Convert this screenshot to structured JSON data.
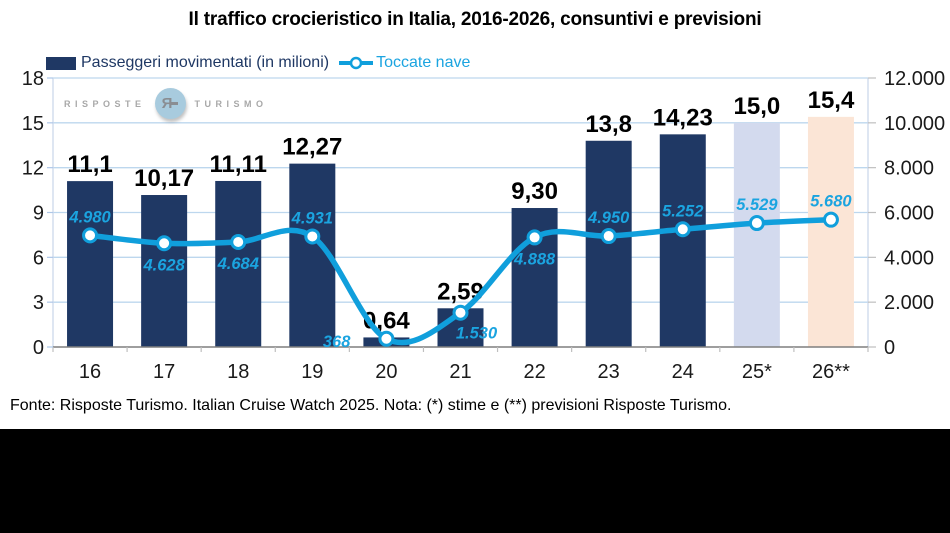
{
  "page": {
    "title": "Il traffico crocieristico in Italia, 2016-2026, consuntivi e previsioni",
    "footer": "Fonte: Risposte Turismo. Italian Cruise Watch 2025. Nota: (*) stime e (**) previsioni Risposte Turismo.",
    "watermark": {
      "left": "RISPOSTE",
      "right": "TURISMO",
      "monogram": "Я"
    }
  },
  "legend": {
    "items": [
      {
        "label": "Passeggeri movimentati (in milioni)",
        "type": "bar"
      },
      {
        "label": "Toccate nave",
        "type": "line"
      }
    ],
    "position": "top-left"
  },
  "colors": {
    "bar": "#1F3864",
    "bar_estimate": "#D3DAEE",
    "bar_forecast": "#FBE5D6",
    "line": "#109FDC",
    "line_label": "#1BA4E0",
    "grid": "#BDD7EE",
    "plot_border": "#C9D6EA",
    "axis_line": "#7F7F7F",
    "tick": "#BFBFBF",
    "left_tick": "#AEC7E8",
    "bar_label": "#000000",
    "axis_text": "#1a1a1a"
  },
  "chart_data": {
    "type": "combo-bar-line",
    "title": "Il traffico crocieristico in Italia, 2016-2026, consuntivi e previsioni",
    "categories": [
      "16",
      "17",
      "18",
      "19",
      "20",
      "21",
      "22",
      "23",
      "24",
      "25*",
      "26**"
    ],
    "grid": true,
    "legend_position": "top-left",
    "left_axis": {
      "min": 0,
      "max": 18,
      "ticks": [
        {
          "value": 0,
          "label": "0"
        },
        {
          "value": 3,
          "label": "3"
        },
        {
          "value": 6,
          "label": "6"
        },
        {
          "value": 9,
          "label": "9"
        },
        {
          "value": 12,
          "label": "12"
        },
        {
          "value": 15,
          "label": "15"
        },
        {
          "value": 18,
          "label": "18"
        }
      ]
    },
    "right_axis": {
      "min": 0,
      "max": 12000,
      "ticks": [
        {
          "value": 0,
          "label": "0"
        },
        {
          "value": 2000,
          "label": "2.000"
        },
        {
          "value": 4000,
          "label": "4.000"
        },
        {
          "value": 6000,
          "label": "6.000"
        },
        {
          "value": 8000,
          "label": "8.000"
        },
        {
          "value": 10000,
          "label": "10.000"
        },
        {
          "value": 12000,
          "label": "12.000"
        }
      ]
    },
    "series": [
      {
        "name": "Passeggeri movimentati (in milioni)",
        "type": "bar",
        "axis": "left",
        "values": [
          11.1,
          10.17,
          11.11,
          12.27,
          0.64,
          2.59,
          9.3,
          13.8,
          14.23,
          15.0,
          15.4
        ],
        "labels": [
          "11,1",
          "10,17",
          "11,11",
          "12,27",
          "0,64",
          "2,59",
          "9,30",
          "13,8",
          "14,23",
          "15,0",
          "15,4"
        ],
        "point_kinds": [
          "actual",
          "actual",
          "actual",
          "actual",
          "actual",
          "actual",
          "actual",
          "actual",
          "actual",
          "estimate",
          "forecast"
        ]
      },
      {
        "name": "Toccate nave",
        "type": "line",
        "axis": "right",
        "values": [
          4980,
          4628,
          4684,
          4931,
          368,
          1530,
          4888,
          4950,
          5252,
          5529,
          5680
        ],
        "labels": [
          "4.980",
          "4.628",
          "4.684",
          "4.931",
          "368",
          "1.530",
          "4.888",
          "4.950",
          "5.252",
          "5.529",
          "5.680"
        ],
        "label_placements": [
          "above",
          "below",
          "below",
          "above",
          "left",
          "below-right",
          "below",
          "above",
          "above",
          "above",
          "above"
        ]
      }
    ]
  }
}
